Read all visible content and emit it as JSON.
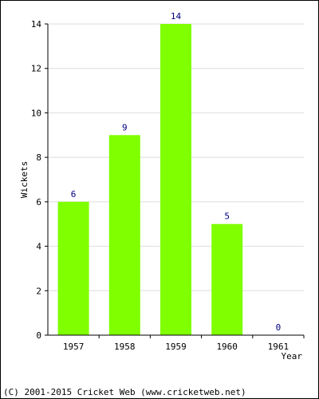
{
  "chart_data": {
    "type": "bar",
    "categories": [
      "1957",
      "1958",
      "1959",
      "1960",
      "1961"
    ],
    "values": [
      6,
      9,
      14,
      5,
      0
    ],
    "data_labels": [
      "6",
      "9",
      "14",
      "5",
      "0"
    ],
    "title": "",
    "xlabel": "Year",
    "ylabel": "Wickets",
    "ylim": [
      0,
      14
    ],
    "yticks": [
      "0",
      "2",
      "4",
      "6",
      "8",
      "10",
      "12",
      "14"
    ],
    "grid": true,
    "legend": "none",
    "colors": {
      "bar": "#7fff00",
      "grid": "#dddddd",
      "axis": "#000000",
      "data_label": "#000080"
    }
  },
  "footer": {
    "copyright": "(C) 2001-2015 Cricket Web (www.cricketweb.net)"
  }
}
